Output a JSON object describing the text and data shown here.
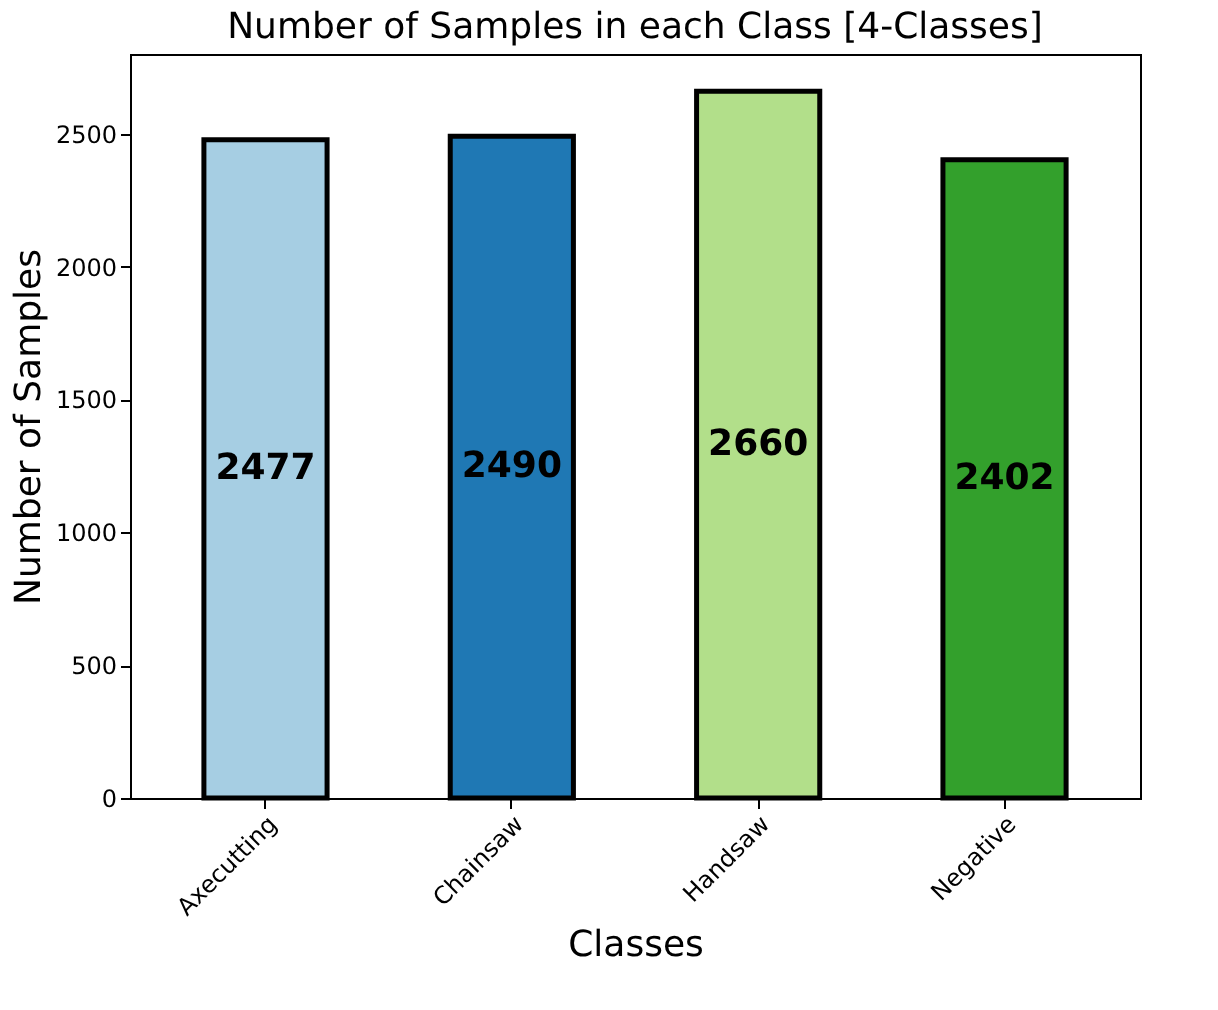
{
  "chart_data": {
    "type": "bar",
    "title": "Number of Samples in each Class [4-Classes]",
    "xlabel": "Classes",
    "ylabel": "Number of Samples",
    "categories": [
      "Axecutting",
      "Chainsaw",
      "Handsaw",
      "Negative"
    ],
    "values": [
      2477,
      2490,
      2660,
      2402
    ],
    "colors": [
      "#a6cee3",
      "#1f78b4",
      "#b2df8a",
      "#33a02c"
    ],
    "ylim": [
      0,
      2800
    ],
    "yticks": [
      0,
      500,
      1000,
      1500,
      2000,
      2500
    ],
    "grid": false,
    "legend": false,
    "data_labels": true
  }
}
